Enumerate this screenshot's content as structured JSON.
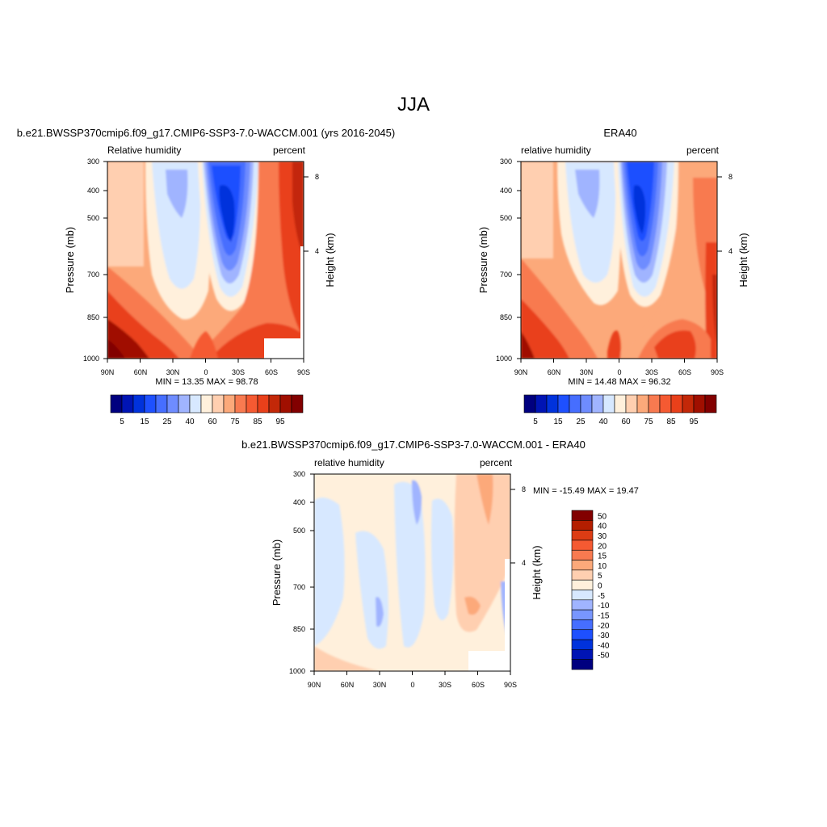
{
  "figure": {
    "title": "JJA",
    "colors": {
      "blue_deep": "#00007f",
      "blue_mid": "#1e50ff",
      "blue_light": "#d7e8ff",
      "cream": "#fff0dc",
      "salmon": "#fca97a",
      "orange_red": "#e9401a",
      "dark_red": "#820000",
      "missing": "#ffffff"
    }
  },
  "chart_data": [
    {
      "id": "model",
      "type": "heatmap",
      "title": "b.e21.BWSSP370cmip6.f09_g17.CMIP6-SSP3-7.0-WACCM.001 (yrs 2016-2045)",
      "left_label": "Relative humidity",
      "right_label": "percent",
      "ylabel": "Pressure (mb)",
      "ylabel_right": "Height (km)",
      "x_ticks": [
        "90N",
        "60N",
        "30N",
        "0",
        "30S",
        "60S",
        "90S"
      ],
      "y_ticks": [
        "300",
        "400",
        "500",
        "700",
        "850",
        "1000"
      ],
      "y_right_ticks": [
        "8",
        "4"
      ],
      "stats": "MIN =  13.35  MAX =  98.78",
      "ylim": [
        1000,
        300
      ],
      "xlim": [
        90,
        -90
      ],
      "colorbar": {
        "orientation": "horizontal",
        "labels": [
          "5",
          "15",
          "25",
          "40",
          "60",
          "75",
          "85",
          "95"
        ],
        "levels": [
          5,
          10,
          15,
          20,
          25,
          30,
          40,
          50,
          60,
          65,
          70,
          75,
          80,
          85,
          90,
          95
        ],
        "colors": [
          "#00007f",
          "#0014b4",
          "#0032dc",
          "#1e50ff",
          "#466eff",
          "#6e8cff",
          "#a0b4ff",
          "#d7e8ff",
          "#fff0dc",
          "#ffcfb0",
          "#fca97a",
          "#f87a50",
          "#f55a32",
          "#e9401a",
          "#c32808",
          "#a00f00",
          "#820000"
        ]
      }
    },
    {
      "id": "obs",
      "type": "heatmap",
      "title": "ERA40",
      "left_label": "relative humidity",
      "right_label": "percent",
      "ylabel": "Pressure (mb)",
      "ylabel_right": "Height (km)",
      "x_ticks": [
        "90N",
        "60N",
        "30N",
        "0",
        "30S",
        "60S",
        "90S"
      ],
      "y_ticks": [
        "300",
        "400",
        "500",
        "700",
        "850",
        "1000"
      ],
      "y_right_ticks": [
        "8",
        "4"
      ],
      "stats": "MIN =  14.48  MAX =  96.32",
      "ylim": [
        1000,
        300
      ],
      "xlim": [
        90,
        -90
      ],
      "colorbar": {
        "orientation": "horizontal",
        "labels": [
          "5",
          "15",
          "25",
          "40",
          "60",
          "75",
          "85",
          "95"
        ],
        "levels": [
          5,
          10,
          15,
          20,
          25,
          30,
          40,
          50,
          60,
          65,
          70,
          75,
          80,
          85,
          90,
          95
        ],
        "colors": [
          "#00007f",
          "#0014b4",
          "#0032dc",
          "#1e50ff",
          "#466eff",
          "#6e8cff",
          "#a0b4ff",
          "#d7e8ff",
          "#fff0dc",
          "#ffcfb0",
          "#fca97a",
          "#f87a50",
          "#f55a32",
          "#e9401a",
          "#c32808",
          "#a00f00",
          "#820000"
        ]
      }
    },
    {
      "id": "diff",
      "type": "heatmap",
      "title": "b.e21.BWSSP370cmip6.f09_g17.CMIP6-SSP3-7.0-WACCM.001 - ERA40",
      "left_label": "relative humidity",
      "right_label": "percent",
      "ylabel": "Pressure (mb)",
      "ylabel_right": "Height (km)",
      "x_ticks": [
        "90N",
        "60N",
        "30N",
        "0",
        "30S",
        "60S",
        "90S"
      ],
      "y_ticks": [
        "300",
        "400",
        "500",
        "700",
        "850",
        "1000"
      ],
      "y_right_ticks": [
        "8",
        "4"
      ],
      "stats": "MIN = -15.49  MAX =  19.47",
      "ylim": [
        1000,
        300
      ],
      "xlim": [
        90,
        -90
      ],
      "colorbar": {
        "orientation": "vertical",
        "labels": [
          "50",
          "40",
          "30",
          "20",
          "15",
          "10",
          "5",
          "0",
          "-5",
          "-10",
          "-15",
          "-20",
          "-30",
          "-40",
          "-50"
        ],
        "levels": [
          50,
          40,
          30,
          20,
          15,
          10,
          5,
          0,
          -5,
          -10,
          -15,
          -20,
          -30,
          -40,
          -50
        ],
        "colors": [
          "#820000",
          "#b41e00",
          "#dc3c14",
          "#f55a32",
          "#f87a50",
          "#fca97a",
          "#ffcfb0",
          "#fff0dc",
          "#d7e8ff",
          "#a0b4ff",
          "#7896ff",
          "#466eff",
          "#1e50ff",
          "#0032dc",
          "#0014b4",
          "#00007f"
        ]
      }
    }
  ]
}
